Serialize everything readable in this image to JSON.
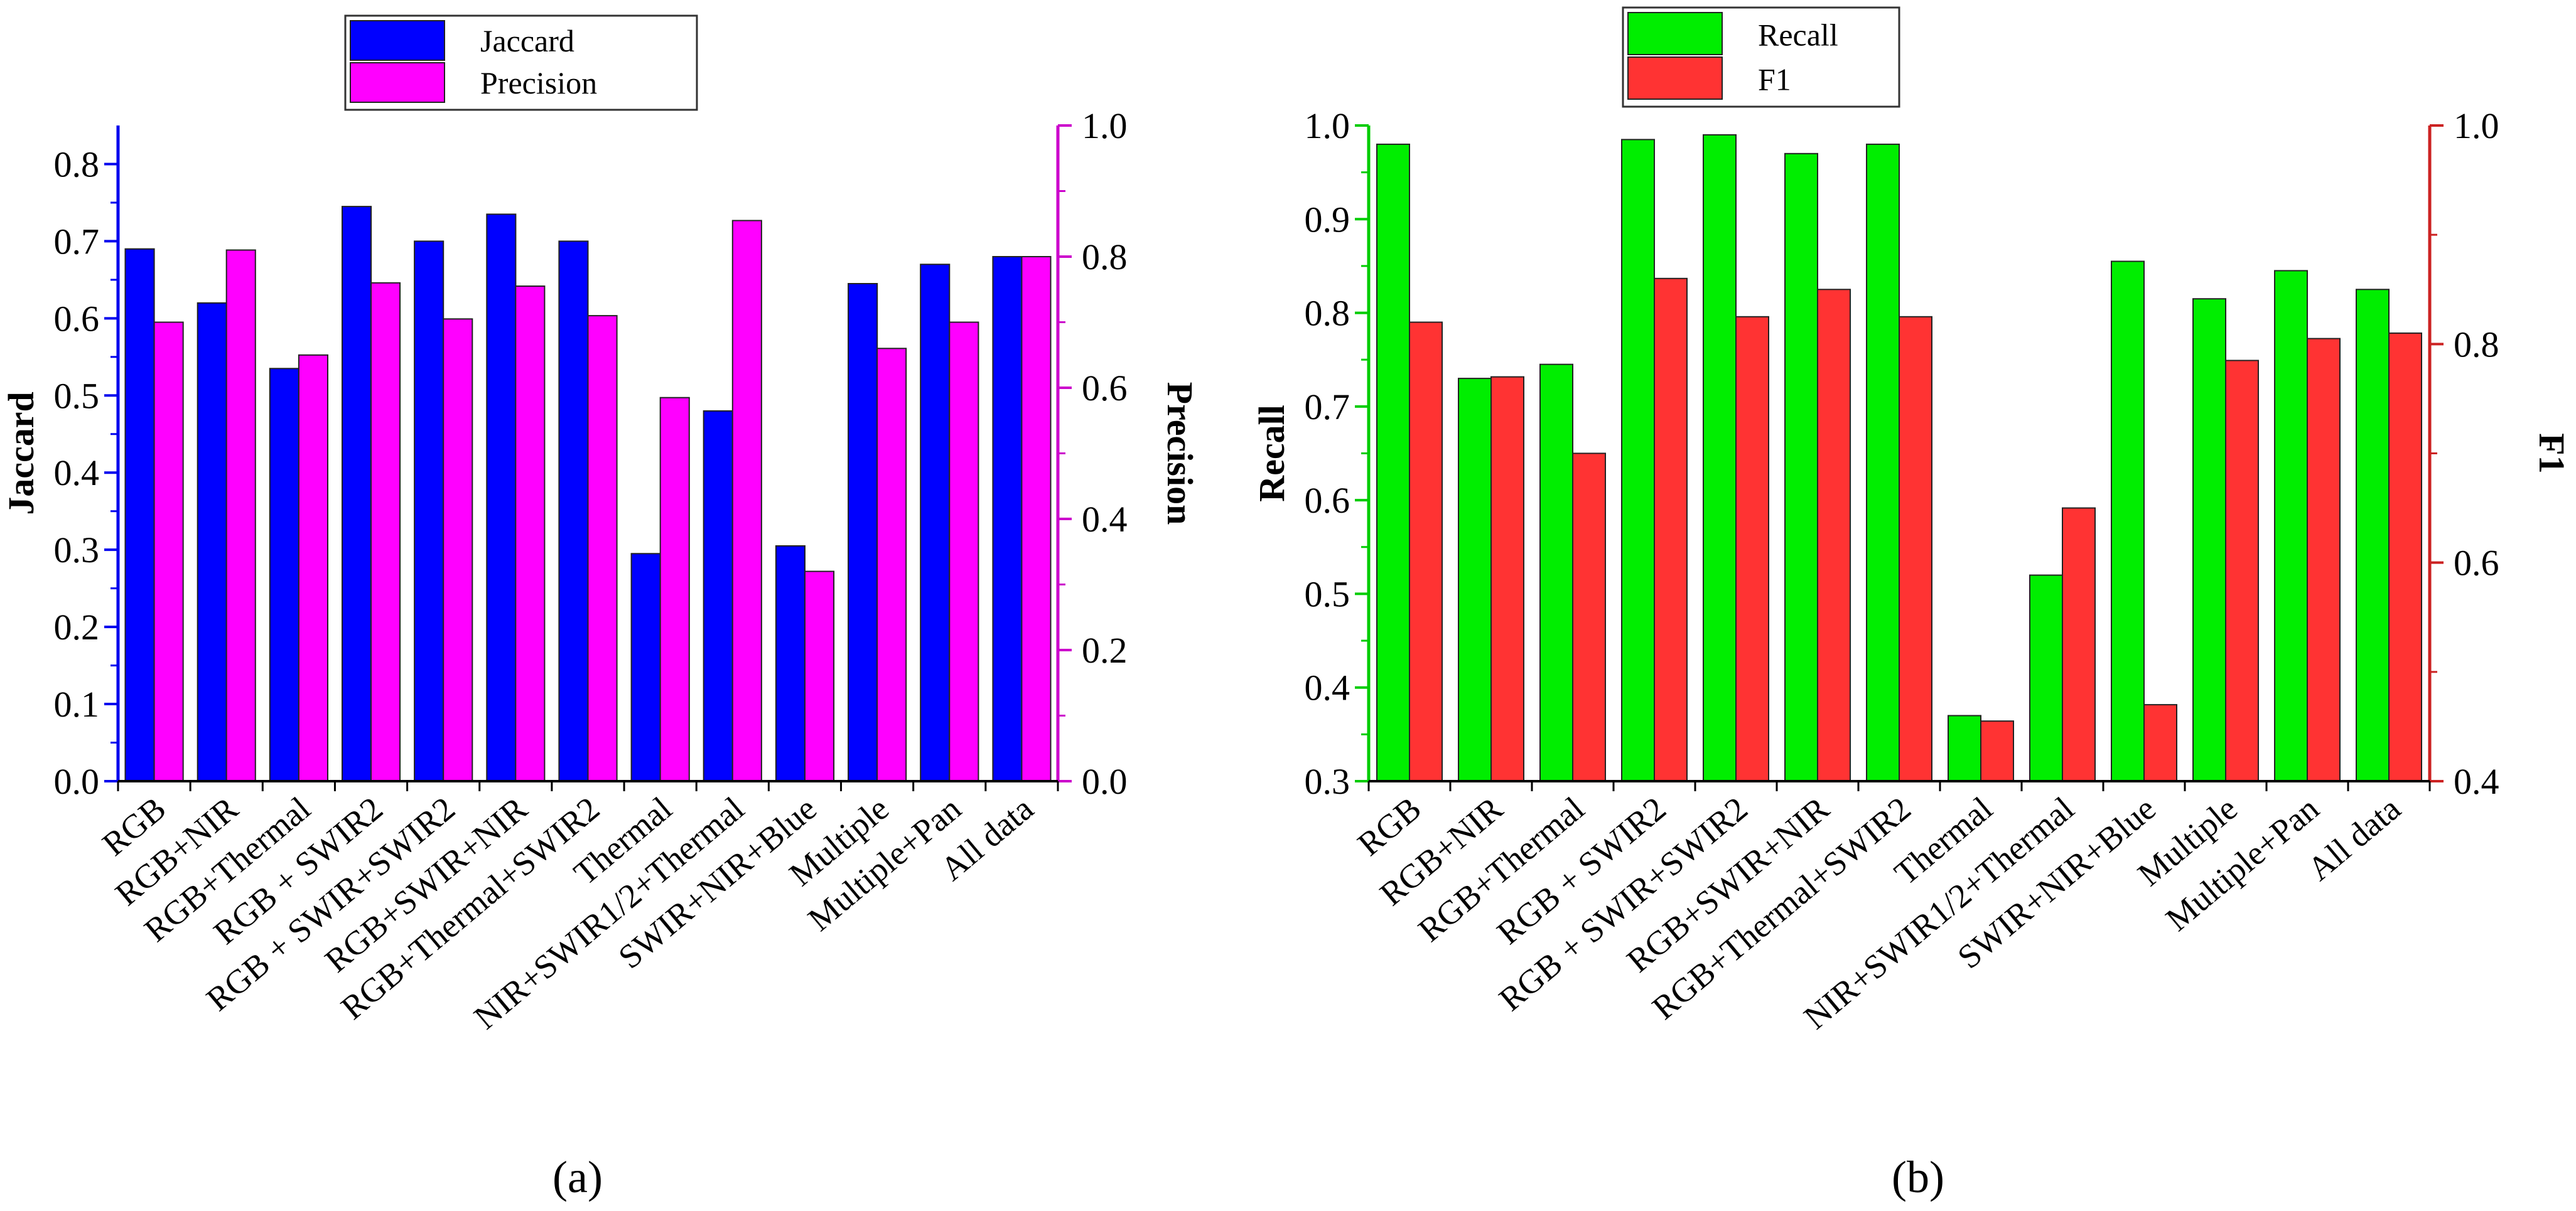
{
  "charts": [
    {
      "panel_label": "(a)",
      "legend": [
        "Jaccard",
        "Precision"
      ],
      "left_axis": {
        "label": "Jaccard",
        "ticks": [
          "0.0",
          "0.1",
          "0.2",
          "0.3",
          "0.4",
          "0.5",
          "0.6",
          "0.7",
          "0.8"
        ],
        "color": "#0000ee"
      },
      "right_axis": {
        "label": "Precision",
        "ticks": [
          "0.0",
          "0.2",
          "0.4",
          "0.6",
          "0.8",
          "1.0"
        ],
        "color": "#cc00cc"
      }
    },
    {
      "panel_label": "(b)",
      "legend": [
        "Recall",
        "F1"
      ],
      "left_axis": {
        "label": "Recall",
        "ticks": [
          "0.3",
          "0.4",
          "0.5",
          "0.6",
          "0.7",
          "0.8",
          "0.9",
          "1.0"
        ],
        "color": "#00cc00"
      },
      "right_axis": {
        "label": "F1",
        "ticks": [
          "0.4",
          "0.6",
          "0.8",
          "1.0"
        ],
        "color": "#cc2222"
      }
    }
  ],
  "colors": {
    "jaccard": "#0000ff",
    "precision": "#ff00ff",
    "recall": "#00ee00",
    "f1": "#ff3333"
  },
  "chart_data": [
    {
      "type": "bar",
      "categories": [
        "RGB",
        "RGB+NIR",
        "RGB+Thermal",
        "RGB + SWIR2",
        "RGB + SWIR+SWIR2",
        "RGB+SWIR+NIR",
        "RGB+Thermal+SWIR2",
        "Thermal",
        "NIR+SWIR1/2+Thermal",
        "SWIR+NIR+Blue",
        "Multiple",
        "Multiple+Pan",
        "All data"
      ],
      "series": [
        {
          "name": "Jaccard",
          "axis": "left",
          "values": [
            0.69,
            0.62,
            0.535,
            0.745,
            0.7,
            0.735,
            0.7,
            0.295,
            0.48,
            0.305,
            0.645,
            0.67,
            0.68
          ]
        },
        {
          "name": "Precision",
          "axis": "right",
          "values": [
            0.7,
            0.81,
            0.65,
            0.76,
            0.705,
            0.755,
            0.71,
            0.585,
            0.855,
            0.32,
            0.66,
            0.7,
            0.8
          ]
        }
      ],
      "ylabel": "Jaccard",
      "ylim": [
        0,
        0.85
      ],
      "y2label": "Precision",
      "y2lim": [
        0,
        1.0
      ]
    },
    {
      "type": "bar",
      "categories": [
        "RGB",
        "RGB+NIR",
        "RGB+Thermal",
        "RGB + SWIR2",
        "RGB + SWIR+SWIR2",
        "RGB+SWIR+NIR",
        "RGB+Thermal+SWIR2",
        "Thermal",
        "NIR+SWIR1/2+Thermal",
        "SWIR+NIR+Blue",
        "Multiple",
        "Multiple+Pan",
        "All data"
      ],
      "series": [
        {
          "name": "Recall",
          "axis": "left",
          "values": [
            0.98,
            0.73,
            0.745,
            0.985,
            0.99,
            0.97,
            0.98,
            0.37,
            0.52,
            0.855,
            0.815,
            0.845,
            0.825
          ]
        },
        {
          "name": "F1",
          "axis": "right",
          "values": [
            0.82,
            0.77,
            0.7,
            0.86,
            0.825,
            0.85,
            0.825,
            0.455,
            0.65,
            0.47,
            0.785,
            0.805,
            0.81
          ]
        }
      ],
      "ylabel": "Recall",
      "ylim": [
        0.3,
        1.0
      ],
      "y2label": "F1",
      "y2lim": [
        0.4,
        1.0
      ]
    }
  ]
}
